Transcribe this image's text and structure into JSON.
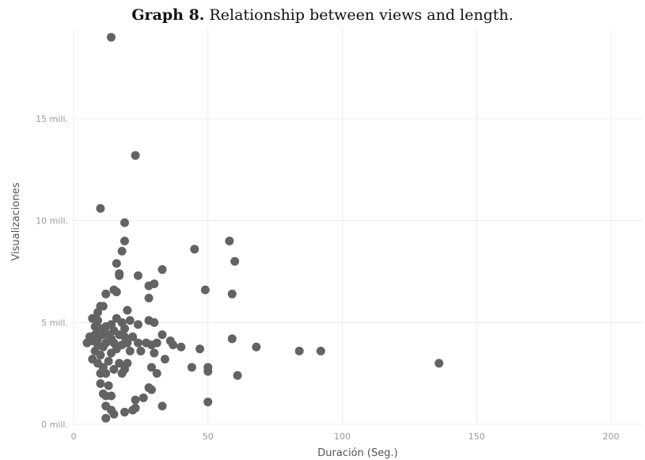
{
  "caption": {
    "prefix": "Graph 8.",
    "text": " Relationship between views and length."
  },
  "chart_data": {
    "type": "scatter",
    "title": "Graph 8. Relationship between views and length.",
    "xlabel": "Duración (Seg.)",
    "ylabel": "Visualizaciones",
    "xlim": [
      0,
      210
    ],
    "ylim": [
      0,
      19.5
    ],
    "x_ticks": [
      {
        "value": 0,
        "label": "0"
      },
      {
        "value": 50,
        "label": "50"
      },
      {
        "value": 100,
        "label": "100"
      },
      {
        "value": 150,
        "label": "150"
      },
      {
        "value": 200,
        "label": "200"
      }
    ],
    "y_ticks": [
      {
        "value": 0,
        "label": "0 mill."
      },
      {
        "value": 5,
        "label": "5 mill."
      },
      {
        "value": 10,
        "label": "10 mill."
      },
      {
        "value": 15,
        "label": "15 mill."
      }
    ],
    "grid": true,
    "color": "#636363",
    "points": [
      [
        14,
        19.0
      ],
      [
        23,
        13.2
      ],
      [
        10,
        10.6
      ],
      [
        19,
        9.9
      ],
      [
        19,
        9.0
      ],
      [
        18,
        8.5
      ],
      [
        16,
        7.9
      ],
      [
        17,
        7.4
      ],
      [
        17,
        7.3
      ],
      [
        24,
        7.3
      ],
      [
        33,
        7.6
      ],
      [
        30,
        6.9
      ],
      [
        28,
        6.8
      ],
      [
        16,
        6.5
      ],
      [
        15,
        6.6
      ],
      [
        28,
        6.2
      ],
      [
        12,
        6.4
      ],
      [
        10,
        5.8
      ],
      [
        11,
        5.8
      ],
      [
        9,
        5.5
      ],
      [
        20,
        5.6
      ],
      [
        7,
        5.2
      ],
      [
        9,
        5.1
      ],
      [
        16,
        5.2
      ],
      [
        18,
        5.0
      ],
      [
        21,
        5.1
      ],
      [
        28,
        5.1
      ],
      [
        30,
        5.0
      ],
      [
        24,
        4.9
      ],
      [
        14,
        4.9
      ],
      [
        12,
        4.8
      ],
      [
        8,
        4.8
      ],
      [
        10,
        4.7
      ],
      [
        15,
        4.6
      ],
      [
        19,
        4.7
      ],
      [
        6,
        4.3
      ],
      [
        8,
        4.4
      ],
      [
        9,
        4.2
      ],
      [
        11,
        4.4
      ],
      [
        13,
        4.4
      ],
      [
        14,
        4.2
      ],
      [
        17,
        4.4
      ],
      [
        19,
        4.3
      ],
      [
        22,
        4.3
      ],
      [
        33,
        4.4
      ],
      [
        5,
        4.0
      ],
      [
        7,
        4.1
      ],
      [
        9,
        3.9
      ],
      [
        11,
        3.8
      ],
      [
        12,
        4.0
      ],
      [
        15,
        4.0
      ],
      [
        18,
        3.9
      ],
      [
        20,
        4.0
      ],
      [
        24,
        4.0
      ],
      [
        27,
        4.0
      ],
      [
        29,
        3.9
      ],
      [
        31,
        4.0
      ],
      [
        37,
        3.9
      ],
      [
        40,
        3.8
      ],
      [
        36,
        4.1
      ],
      [
        8,
        3.6
      ],
      [
        10,
        3.4
      ],
      [
        14,
        3.5
      ],
      [
        16,
        3.7
      ],
      [
        21,
        3.6
      ],
      [
        25,
        3.6
      ],
      [
        30,
        3.5
      ],
      [
        34,
        3.2
      ],
      [
        7,
        3.2
      ],
      [
        9,
        3.0
      ],
      [
        13,
        3.1
      ],
      [
        17,
        3.0
      ],
      [
        20,
        3.0
      ],
      [
        11,
        2.8
      ],
      [
        15,
        2.7
      ],
      [
        19,
        2.7
      ],
      [
        10,
        2.5
      ],
      [
        12,
        2.5
      ],
      [
        18,
        2.5
      ],
      [
        29,
        2.8
      ],
      [
        31,
        2.5
      ],
      [
        10,
        2.0
      ],
      [
        13,
        1.9
      ],
      [
        28,
        1.8
      ],
      [
        29,
        1.7
      ],
      [
        11,
        1.5
      ],
      [
        12,
        1.4
      ],
      [
        14,
        1.4
      ],
      [
        23,
        1.2
      ],
      [
        26,
        1.3
      ],
      [
        12,
        0.9
      ],
      [
        14,
        0.7
      ],
      [
        22,
        0.7
      ],
      [
        23,
        0.8
      ],
      [
        33,
        0.9
      ],
      [
        15,
        0.5
      ],
      [
        19,
        0.6
      ],
      [
        12,
        0.3
      ],
      [
        45,
        8.6
      ],
      [
        58,
        9.0
      ],
      [
        60,
        8.0
      ],
      [
        49,
        6.6
      ],
      [
        59,
        6.4
      ],
      [
        47,
        3.7
      ],
      [
        59,
        4.2
      ],
      [
        68,
        3.8
      ],
      [
        84,
        3.6
      ],
      [
        92,
        3.6
      ],
      [
        44,
        2.8
      ],
      [
        50,
        2.8
      ],
      [
        50,
        2.6
      ],
      [
        61,
        2.4
      ],
      [
        50,
        1.1
      ],
      [
        136,
        3.0
      ]
    ]
  }
}
